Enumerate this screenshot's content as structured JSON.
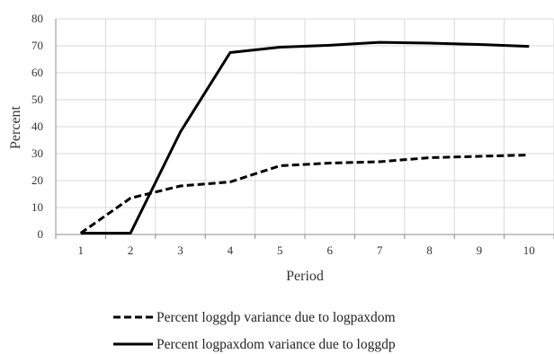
{
  "chart_data": {
    "type": "line",
    "title": "",
    "xlabel": "Period",
    "ylabel": "Percent",
    "x": [
      1,
      2,
      3,
      4,
      5,
      6,
      7,
      8,
      9,
      10
    ],
    "x_tick_labels": [
      "1",
      "2",
      "3",
      "4",
      "5",
      "6",
      "7",
      "8",
      "9",
      "10"
    ],
    "ylim": [
      0,
      80
    ],
    "y_ticks": [
      0,
      10,
      20,
      30,
      40,
      50,
      60,
      70,
      80
    ],
    "y_tick_labels": [
      "0",
      "10",
      "20",
      "30",
      "40",
      "50",
      "60",
      "70",
      "80"
    ],
    "grid": true,
    "legend_position": "bottom",
    "series": [
      {
        "name": "Percent loggdp variance due to logpaxdom",
        "style": "dashed",
        "color": "#000000",
        "values": [
          0.5,
          13.5,
          18.0,
          19.5,
          25.5,
          26.5,
          27.0,
          28.5,
          29.0,
          29.5
        ]
      },
      {
        "name": "Percent logpaxdom variance due to loggdp",
        "style": "solid",
        "color": "#000000",
        "values": [
          0.5,
          0.5,
          38.0,
          67.5,
          69.5,
          70.2,
          71.3,
          71.0,
          70.5,
          69.8
        ]
      }
    ]
  }
}
